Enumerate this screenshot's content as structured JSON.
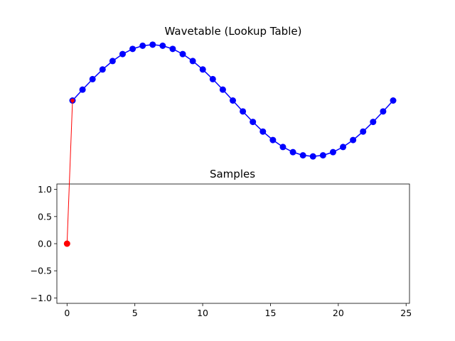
{
  "figure": {
    "background": "#ffffff"
  },
  "chart_data": [
    {
      "type": "line",
      "title": "Wavetable (Lookup Table)",
      "axes_visible": false,
      "grid": false,
      "color": "#0000ff",
      "marker": "circle",
      "x": [
        0.0,
        0.7389,
        1.4778,
        2.2167,
        2.9556,
        3.6945,
        4.4334,
        5.1723,
        5.9112,
        6.6501,
        7.389,
        8.1279,
        8.8668,
        9.6057,
        10.3446,
        11.0835,
        11.8224,
        12.5613,
        13.3002,
        14.0391,
        14.778,
        15.5169,
        16.2558,
        16.9947,
        17.7336,
        18.4725,
        19.2114,
        19.9503,
        20.6892,
        21.4281,
        22.167,
        22.9059,
        23.6448
      ],
      "y": [
        0.0,
        0.1951,
        0.3827,
        0.5556,
        0.7071,
        0.8315,
        0.9239,
        0.9808,
        1.0,
        0.9808,
        0.9239,
        0.8315,
        0.7071,
        0.5556,
        0.3827,
        0.1951,
        0.0,
        -0.1951,
        -0.3827,
        -0.5556,
        -0.7071,
        -0.8315,
        -0.9239,
        -0.9808,
        -1.0,
        -0.9808,
        -0.9239,
        -0.8315,
        -0.7071,
        -0.5556,
        -0.3827,
        -0.1951,
        0.0
      ],
      "ylim": [
        -1.1,
        1.1
      ],
      "highlight": {
        "index": 0,
        "color": "#ff0000"
      }
    },
    {
      "type": "scatter",
      "title": "Samples",
      "color": "#ff0000",
      "x": [
        0
      ],
      "y": [
        0.0
      ],
      "xlim": [
        -0.75,
        25.25
      ],
      "ylim": [
        -1.1,
        1.1
      ],
      "xticks": [
        0,
        5,
        10,
        15,
        20,
        25
      ],
      "xtick_labels": [
        "0",
        "5",
        "10",
        "15",
        "20",
        "25"
      ],
      "yticks": [
        1.0,
        0.5,
        0.0,
        -0.5,
        -1.0
      ],
      "ytick_labels": [
        "1.0",
        "0.5",
        "0.0",
        "−0.5",
        "−1.0"
      ],
      "grid": false
    }
  ],
  "connector": {
    "color": "#ff0000",
    "from": "Samples point 0",
    "to": "Wavetable highlighted point"
  }
}
